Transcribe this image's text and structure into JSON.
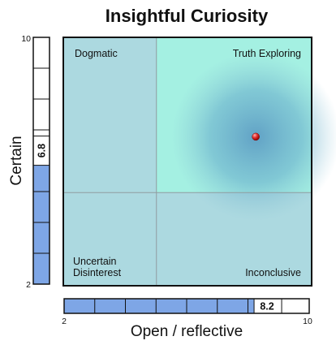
{
  "chart_data": {
    "type": "scatter",
    "title": "Insightful Curiosity",
    "xlabel": "Open / reflective",
    "ylabel": "Certain",
    "xlim": [
      2,
      10
    ],
    "ylim": [
      2,
      10
    ],
    "x_tick_labels": [
      "2",
      "10"
    ],
    "y_tick_labels": [
      "10",
      "2"
    ],
    "divider": {
      "x": 5,
      "y": 5
    },
    "quadrants": {
      "top_left": "Dogmatic",
      "top_right": "Truth Exploring",
      "bottom_left_line1": "Uncertain",
      "bottom_left_line2": "Disinterest",
      "bottom_right": "Inconclusive"
    },
    "point": {
      "x": 8.2,
      "y": 6.8
    },
    "x_bar": {
      "value": 8.2,
      "label": "8.2"
    },
    "y_bar": {
      "value": 6.8,
      "label": "6.8"
    },
    "colors": {
      "quadrant_base": "#acd9e0",
      "quadrant_highlight": "#a4f0e2",
      "halo_center": "#5e9ec4",
      "point": "#e03030",
      "bar_fill": "#7ea6e6",
      "grid_line": "#909ca0",
      "border": "#111111"
    }
  }
}
